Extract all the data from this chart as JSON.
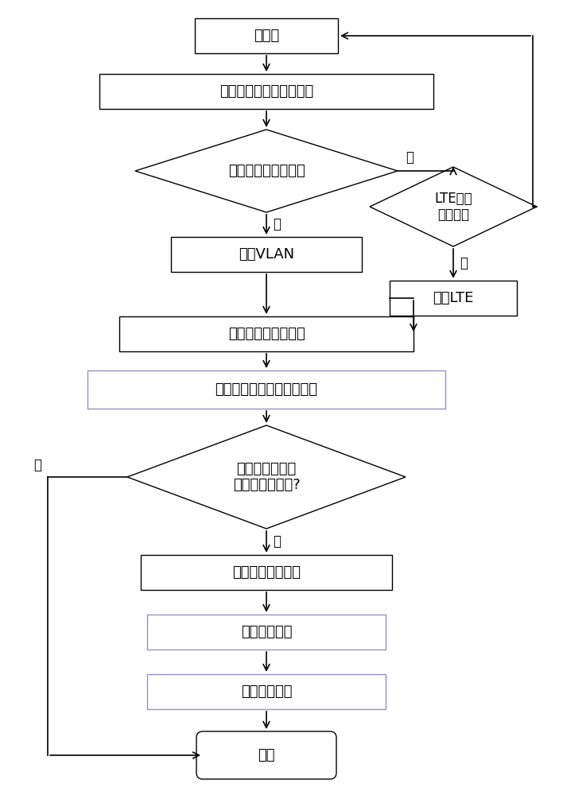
{
  "bg_color": "#ffffff",
  "box_color": "#000000",
  "arrow_color": "#000000",
  "purple_border": "#9b8ec4",
  "font_size": 13,
  "nodes": {
    "init_text": "初始化",
    "sort_text": "按用户带宽需求降序排序",
    "vlc_text": "可见光网络是否可用",
    "vlan_text": "接入VLAN",
    "water_text": "改进注水法分配功率",
    "lte_check_text": "LTE网络\n是否可用",
    "lte_in_text": "接入LTE",
    "search_text": "穷举搜索调整用户接入网络",
    "test_text": "测试调整后系统\n否吐量是否提高?",
    "adjust_text": "调整用户接入网络",
    "repower_text": "重新分配功率",
    "rebw_text": "重新分配带宽",
    "end_text": "结束",
    "yes_text": "是",
    "no_text": "否"
  }
}
